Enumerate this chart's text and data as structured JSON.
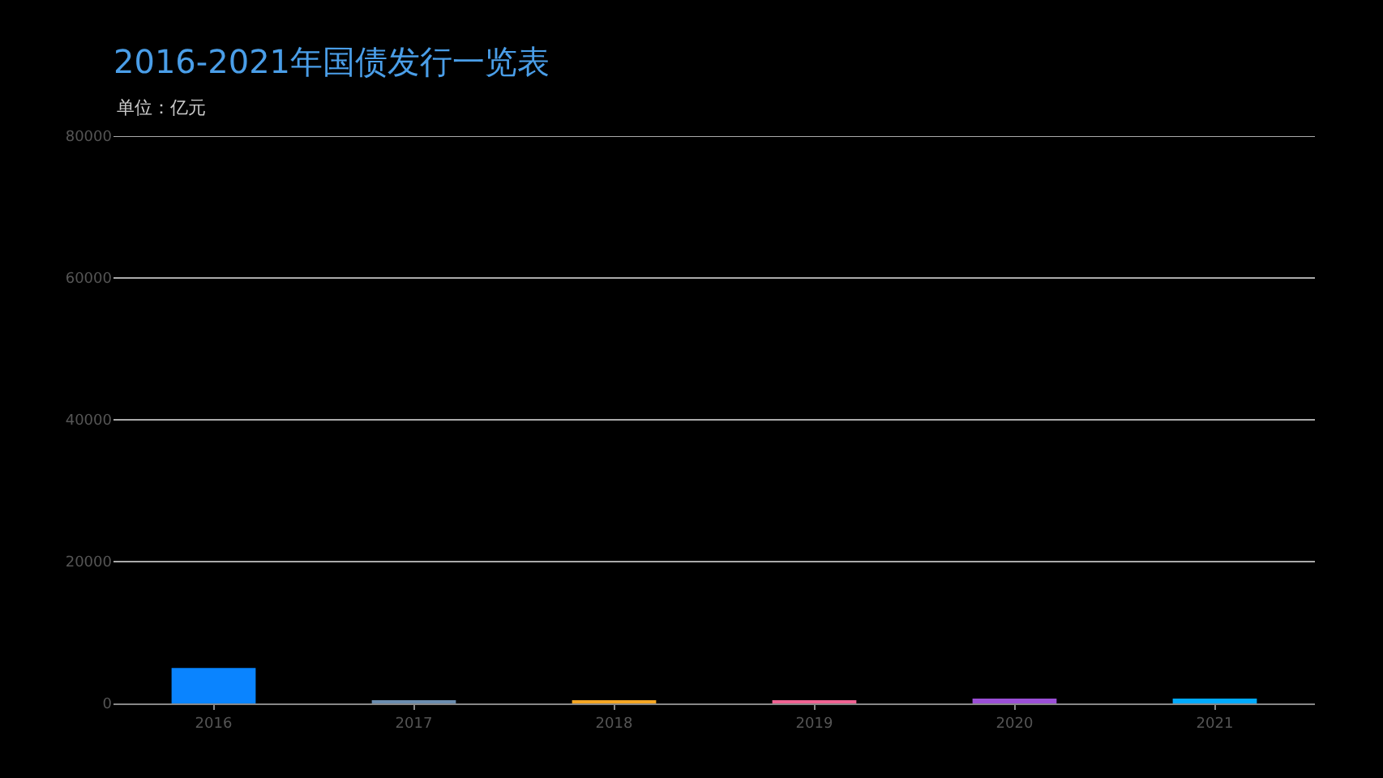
{
  "chart_data": {
    "type": "bar",
    "title": "2016-2021年国债发行一览表",
    "subtitle": "单位：亿元",
    "categories": [
      "2016",
      "2017",
      "2018",
      "2019",
      "2020",
      "2021"
    ],
    "values": [
      5000,
      300,
      300,
      300,
      700,
      700
    ],
    "colors": [
      "#0a84ff",
      "#6a8caf",
      "#f5a623",
      "#f06292",
      "#9b4fd6",
      "#00aaff"
    ],
    "ylim": [
      0,
      80000
    ],
    "yticks": [
      0,
      20000,
      40000,
      60000,
      80000
    ],
    "grid": "y"
  }
}
